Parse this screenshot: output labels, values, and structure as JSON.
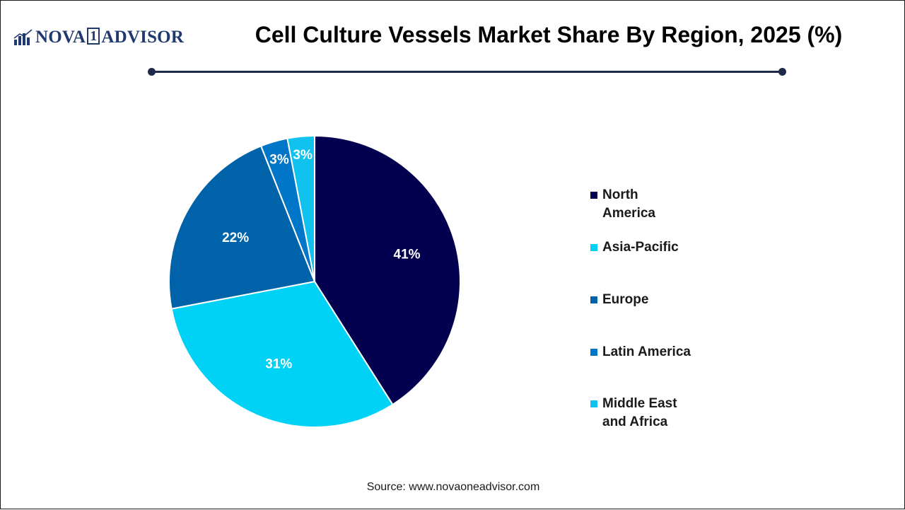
{
  "header": {
    "logo_text_left": "NOVA",
    "logo_text_box": "1",
    "logo_text_right": "ADVISOR",
    "title": "Cell Culture Vessels Market Share By Region, 2025 (%)"
  },
  "chart_data": {
    "type": "pie",
    "title": "Cell Culture Vessels Market Share By Region, 2025 (%)",
    "unit": "%",
    "legend_position": "right",
    "slices": [
      {
        "name": "North America",
        "value": 41,
        "label": "41%",
        "color": "#03004f"
      },
      {
        "name": "Asia-Pacific",
        "value": 31,
        "label": "31%",
        "color": "#00d2f5"
      },
      {
        "name": "Europe",
        "value": 22,
        "label": "22%",
        "color": "#0062a8"
      },
      {
        "name": "Latin America",
        "value": 3,
        "label": "3%",
        "color": "#0076c8"
      },
      {
        "name": "Middle East and Africa",
        "value": 3,
        "label": "3%",
        "color": "#12c2ee"
      }
    ]
  },
  "legend": {
    "items": [
      {
        "label": "North America",
        "color": "#03004f"
      },
      {
        "label": "Asia-Pacific",
        "color": "#00d2f5"
      },
      {
        "label": "Europe",
        "color": "#0062a8"
      },
      {
        "label": "Latin America",
        "color": "#0076c8"
      },
      {
        "label": "Middle East and Africa",
        "color": "#12c2ee"
      }
    ]
  },
  "footer": {
    "source": "Source: www.novaoneadvisor.com"
  }
}
